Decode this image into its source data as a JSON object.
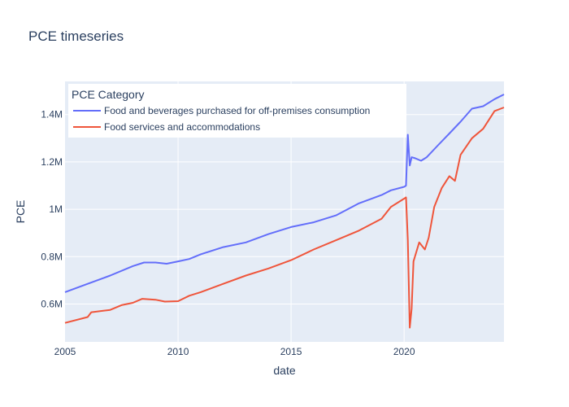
{
  "chart_data": {
    "type": "line",
    "title": "PCE timeseries",
    "xlabel": "date",
    "ylabel": "PCE",
    "xlim": [
      "2005-01-01",
      "2024-06-01"
    ],
    "ylim": [
      440000,
      1540000
    ],
    "x_ticks": [
      "2005",
      "2010",
      "2015",
      "2020"
    ],
    "x_tick_dates": [
      "2005-01-01",
      "2010-01-01",
      "2015-01-01",
      "2020-01-01"
    ],
    "y_ticks": [
      600000,
      800000,
      1000000,
      1200000,
      1400000
    ],
    "y_tick_labels": [
      "0.6M",
      "0.8M",
      "1M",
      "1.2M",
      "1.4M"
    ],
    "grid": true,
    "legend": {
      "title": "PCE Category",
      "position": "top-left"
    },
    "plot_bg": "#e5ecf6",
    "series": [
      {
        "name": "Food and beverages purchased for off-premises consumption",
        "color": "#636efa",
        "points": [
          [
            "2005-01-01",
            650000
          ],
          [
            "2006-01-01",
            685000
          ],
          [
            "2007-01-01",
            720000
          ],
          [
            "2008-01-01",
            760000
          ],
          [
            "2008-07-01",
            775000
          ],
          [
            "2009-01-01",
            775000
          ],
          [
            "2009-07-01",
            770000
          ],
          [
            "2010-01-01",
            780000
          ],
          [
            "2010-07-01",
            790000
          ],
          [
            "2011-01-01",
            810000
          ],
          [
            "2012-01-01",
            840000
          ],
          [
            "2013-01-01",
            860000
          ],
          [
            "2014-01-01",
            895000
          ],
          [
            "2015-01-01",
            925000
          ],
          [
            "2016-01-01",
            945000
          ],
          [
            "2017-01-01",
            975000
          ],
          [
            "2018-01-01",
            1025000
          ],
          [
            "2019-01-01",
            1060000
          ],
          [
            "2019-06-01",
            1080000
          ],
          [
            "2020-01-01",
            1095000
          ],
          [
            "2020-02-01",
            1100000
          ],
          [
            "2020-03-01",
            1315000
          ],
          [
            "2020-04-01",
            1185000
          ],
          [
            "2020-05-01",
            1220000
          ],
          [
            "2020-07-01",
            1215000
          ],
          [
            "2020-10-01",
            1205000
          ],
          [
            "2021-01-01",
            1220000
          ],
          [
            "2021-07-01",
            1270000
          ],
          [
            "2022-01-01",
            1320000
          ],
          [
            "2022-07-01",
            1370000
          ],
          [
            "2023-01-01",
            1425000
          ],
          [
            "2023-07-01",
            1435000
          ],
          [
            "2024-01-01",
            1465000
          ],
          [
            "2024-06-01",
            1485000
          ]
        ]
      },
      {
        "name": "Food services and accommodations",
        "color": "#ef553b",
        "points": [
          [
            "2005-01-01",
            520000
          ],
          [
            "2006-01-01",
            545000
          ],
          [
            "2006-03-01",
            565000
          ],
          [
            "2007-01-01",
            575000
          ],
          [
            "2007-07-01",
            595000
          ],
          [
            "2008-01-01",
            605000
          ],
          [
            "2008-06-01",
            622000
          ],
          [
            "2009-01-01",
            618000
          ],
          [
            "2009-06-01",
            610000
          ],
          [
            "2010-01-01",
            612000
          ],
          [
            "2010-07-01",
            635000
          ],
          [
            "2011-01-01",
            650000
          ],
          [
            "2012-01-01",
            685000
          ],
          [
            "2013-01-01",
            720000
          ],
          [
            "2014-01-01",
            750000
          ],
          [
            "2015-01-01",
            785000
          ],
          [
            "2016-01-01",
            830000
          ],
          [
            "2017-01-01",
            870000
          ],
          [
            "2018-01-01",
            910000
          ],
          [
            "2019-01-01",
            960000
          ],
          [
            "2019-06-01",
            1010000
          ],
          [
            "2020-01-01",
            1045000
          ],
          [
            "2020-02-01",
            1050000
          ],
          [
            "2020-03-01",
            870000
          ],
          [
            "2020-04-01",
            500000
          ],
          [
            "2020-05-01",
            580000
          ],
          [
            "2020-06-01",
            780000
          ],
          [
            "2020-09-01",
            860000
          ],
          [
            "2020-12-01",
            830000
          ],
          [
            "2021-02-01",
            880000
          ],
          [
            "2021-05-01",
            1010000
          ],
          [
            "2021-09-01",
            1090000
          ],
          [
            "2022-01-01",
            1140000
          ],
          [
            "2022-04-01",
            1120000
          ],
          [
            "2022-07-01",
            1230000
          ],
          [
            "2023-01-01",
            1300000
          ],
          [
            "2023-07-01",
            1340000
          ],
          [
            "2024-01-01",
            1415000
          ],
          [
            "2024-06-01",
            1430000
          ]
        ]
      }
    ]
  }
}
